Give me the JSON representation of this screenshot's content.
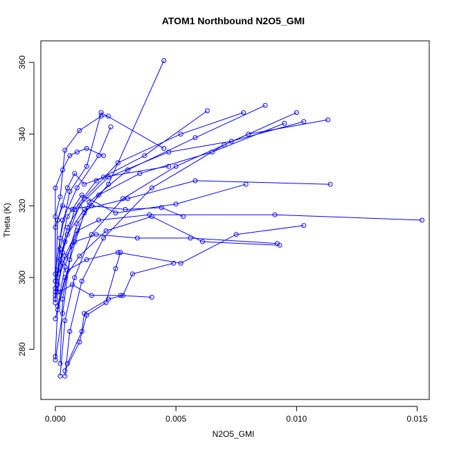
{
  "chart_data": {
    "type": "scatter",
    "title": "ATOM1 Northbound N2O5_GMI",
    "xlabel": "N2O5_GMI",
    "ylabel": "Theta (K)",
    "xlim": [
      -0.0006,
      0.0155
    ],
    "ylim": [
      266,
      366
    ],
    "xticks": [
      0.0,
      0.005,
      0.01,
      0.015
    ],
    "xtick_labels": [
      "0.000",
      "0.005",
      "0.010",
      "0.015"
    ],
    "yticks": [
      280,
      300,
      320,
      340,
      360
    ],
    "ytick_labels": [
      "280",
      "300",
      "320",
      "340",
      "360"
    ],
    "grid": false,
    "color": "#0000ff",
    "series": [
      {
        "points": [
          [
            0.0,
            277
          ],
          [
            0.0003,
            290
          ],
          [
            0.0006,
            305
          ],
          [
            0.0012,
            318
          ],
          [
            0.0022,
            326
          ],
          [
            0.0045,
            360.5
          ]
        ]
      },
      {
        "points": [
          [
            0.0,
            278
          ],
          [
            0.0001,
            292
          ],
          [
            0.0004,
            303
          ],
          [
            0.0009,
            315
          ],
          [
            0.0018,
            323
          ],
          [
            0.0035,
            329
          ],
          [
            0.0065,
            335
          ],
          [
            0.0095,
            343
          ]
        ]
      },
      {
        "points": [
          [
            0.0002,
            272.5
          ],
          [
            0.0004,
            288
          ],
          [
            0.0008,
            300
          ],
          [
            0.0015,
            312
          ],
          [
            0.0028,
            322
          ],
          [
            0.005,
            331
          ],
          [
            0.008,
            340
          ],
          [
            0.0113,
            344
          ]
        ]
      },
      {
        "points": [
          [
            0.0004,
            272.5
          ],
          [
            0.0006,
            285
          ],
          [
            0.0011,
            299
          ],
          [
            0.002,
            311
          ],
          [
            0.004,
            325
          ],
          [
            0.007,
            337
          ],
          [
            0.01,
            346
          ]
        ]
      },
      {
        "points": [
          [
            0.0002,
            276
          ],
          [
            0.0003,
            294
          ],
          [
            0.0007,
            309
          ],
          [
            0.0014,
            321
          ],
          [
            0.003,
            330
          ],
          [
            0.0058,
            339
          ],
          [
            0.0087,
            348
          ]
        ]
      },
      {
        "points": [
          [
            0.0,
            295
          ],
          [
            0.0002,
            305
          ],
          [
            0.0005,
            314
          ],
          [
            0.0012,
            322
          ],
          [
            0.0026,
            332
          ],
          [
            0.0052,
            340
          ],
          [
            0.0078,
            346
          ]
        ]
      },
      {
        "points": [
          [
            0.0001,
            296
          ],
          [
            0.0003,
            307
          ],
          [
            0.0008,
            319
          ],
          [
            0.0017,
            327
          ],
          [
            0.0037,
            334
          ],
          [
            0.0063,
            346.5
          ]
        ]
      },
      {
        "points": [
          [
            0.0,
            299
          ],
          [
            0.0004,
            310
          ],
          [
            0.001,
            320
          ],
          [
            0.0022,
            328
          ],
          [
            0.0047,
            335
          ],
          [
            0.0073,
            338
          ],
          [
            0.0103,
            343.5
          ]
        ]
      },
      {
        "points": [
          [
            0.0001,
            300
          ],
          [
            0.0002,
            311
          ],
          [
            0.0006,
            324
          ],
          [
            0.0013,
            331
          ],
          [
            0.0019,
            346
          ],
          [
            0.0045,
            336
          ]
        ]
      },
      {
        "points": [
          [
            0.0,
            301
          ],
          [
            0.0003,
            316
          ],
          [
            0.0009,
            325
          ],
          [
            0.0018,
            334
          ],
          [
            0.0023,
            342
          ]
        ]
      },
      {
        "points": [
          [
            0.0,
            297
          ],
          [
            0.0002,
            308
          ],
          [
            0.0005,
            317
          ],
          [
            0.0011,
            323
          ],
          [
            0.0025,
            318
          ],
          [
            0.005,
            320.5
          ],
          [
            0.0079,
            326
          ]
        ]
      },
      {
        "points": [
          [
            0.0001,
            298
          ],
          [
            0.0004,
            306
          ],
          [
            0.0009,
            313
          ],
          [
            0.0018,
            316
          ],
          [
            0.0039,
            317.5
          ],
          [
            0.0091,
            317.5
          ],
          [
            0.0152,
            316
          ]
        ]
      },
      {
        "points": [
          [
            0.0001,
            302
          ],
          [
            0.0005,
            312
          ],
          [
            0.0012,
            319
          ],
          [
            0.003,
            322
          ],
          [
            0.0058,
            327
          ],
          [
            0.0114,
            326
          ]
        ]
      },
      {
        "points": [
          [
            0.0,
            294
          ],
          [
            0.0003,
            304
          ],
          [
            0.0008,
            310
          ],
          [
            0.0017,
            312
          ],
          [
            0.0034,
            311
          ],
          [
            0.0056,
            311
          ],
          [
            0.0092,
            309.5
          ]
        ]
      },
      {
        "points": [
          [
            0.0,
            288.5
          ],
          [
            0.0004,
            300
          ],
          [
            0.001,
            306
          ],
          [
            0.0021,
            313
          ],
          [
            0.004,
            317
          ],
          [
            0.0061,
            310
          ],
          [
            0.0093,
            309
          ]
        ]
      },
      {
        "points": [
          [
            0.0001,
            291
          ],
          [
            0.0005,
            302
          ],
          [
            0.0013,
            305
          ],
          [
            0.0026,
            307
          ],
          [
            0.0052,
            304
          ],
          [
            0.0075,
            312
          ],
          [
            0.0103,
            314.5
          ]
        ]
      },
      {
        "points": [
          [
            0.0002,
            296
          ],
          [
            0.0007,
            298
          ],
          [
            0.0015,
            295
          ],
          [
            0.0027,
            295
          ],
          [
            0.004,
            294.5
          ]
        ]
      },
      {
        "points": [
          [
            0.0004,
            274
          ],
          [
            0.001,
            282
          ],
          [
            0.0013,
            289.5
          ],
          [
            0.0021,
            293
          ],
          [
            0.0025,
            302.5
          ],
          [
            0.0027,
            307
          ]
        ]
      },
      {
        "points": [
          [
            0.0005,
            276
          ],
          [
            0.0011,
            285
          ],
          [
            0.0012,
            290
          ],
          [
            0.0022,
            294
          ],
          [
            0.0028,
            295
          ],
          [
            0.0032,
            301
          ],
          [
            0.0049,
            304
          ]
        ]
      },
      {
        "points": [
          [
            0.0,
            295
          ],
          [
            0.0,
            317
          ],
          [
            0.0002,
            322.5
          ],
          [
            0.0004,
            335.5
          ],
          [
            0.001,
            341
          ],
          [
            0.0019,
            345
          ],
          [
            0.0022,
            345
          ]
        ]
      },
      {
        "points": [
          [
            0.0,
            296
          ],
          [
            0.0,
            325
          ],
          [
            0.0003,
            330
          ],
          [
            0.0006,
            334
          ],
          [
            0.0009,
            335
          ],
          [
            0.0013,
            336
          ],
          [
            0.002,
            334
          ]
        ]
      },
      {
        "points": [
          [
            0.0,
            293
          ],
          [
            0.0,
            314
          ],
          [
            0.0005,
            325
          ],
          [
            0.0008,
            329
          ],
          [
            0.0012,
            326
          ],
          [
            0.002,
            328
          ],
          [
            0.0047,
            331
          ]
        ]
      },
      {
        "points": [
          [
            0.0,
            294
          ],
          [
            0.0001,
            316
          ],
          [
            0.0003,
            320
          ],
          [
            0.0007,
            319
          ],
          [
            0.0015,
            320
          ],
          [
            0.0029,
            319
          ],
          [
            0.0044,
            319.5
          ],
          [
            0.0053,
            317
          ]
        ]
      }
    ]
  }
}
